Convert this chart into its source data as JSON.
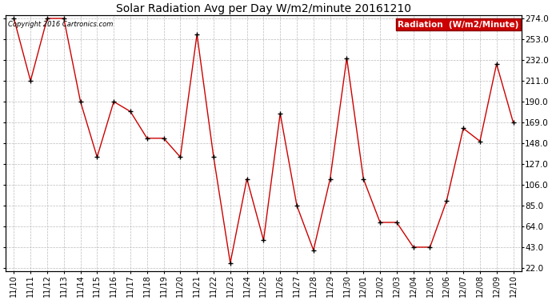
{
  "title": "Solar Radiation Avg per Day W/m2/minute 20161210",
  "copyright_text": "Copyright 2016 Cartronics.com",
  "legend_label": "Radiation  (W/m2/Minute)",
  "legend_bg": "#cc0000",
  "legend_fg": "#ffffff",
  "line_color": "#cc0000",
  "marker_color": "#000000",
  "bg_color": "#ffffff",
  "plot_bg_color": "#ffffff",
  "grid_color": "#bbbbbb",
  "title_fontsize": 11,
  "yticks": [
    22.0,
    43.0,
    64.0,
    85.0,
    106.0,
    127.0,
    148.0,
    169.0,
    190.0,
    211.0,
    232.0,
    253.0,
    274.0
  ],
  "labels": [
    "11/10",
    "11/11",
    "11/12",
    "11/13",
    "11/14",
    "11/15",
    "11/16",
    "11/17",
    "11/18",
    "11/19",
    "11/20",
    "11/21",
    "11/22",
    "11/23",
    "11/24",
    "11/25",
    "11/26",
    "11/27",
    "11/28",
    "11/29",
    "11/30",
    "12/01",
    "12/02",
    "12/03",
    "12/04",
    "12/05",
    "12/06",
    "12/07",
    "12/08",
    "12/09",
    "12/10"
  ],
  "values": [
    274.0,
    211.0,
    274.0,
    274.0,
    190.0,
    134.0,
    190.0,
    180.0,
    153.0,
    153.0,
    134.0,
    258.0,
    134.0,
    27.0,
    112.0,
    50.0,
    178.0,
    85.0,
    40.0,
    112.0,
    234.0,
    112.0,
    68.0,
    68.0,
    43.0,
    43.0,
    90.0,
    163.0,
    150.0,
    228.0,
    169.0
  ]
}
